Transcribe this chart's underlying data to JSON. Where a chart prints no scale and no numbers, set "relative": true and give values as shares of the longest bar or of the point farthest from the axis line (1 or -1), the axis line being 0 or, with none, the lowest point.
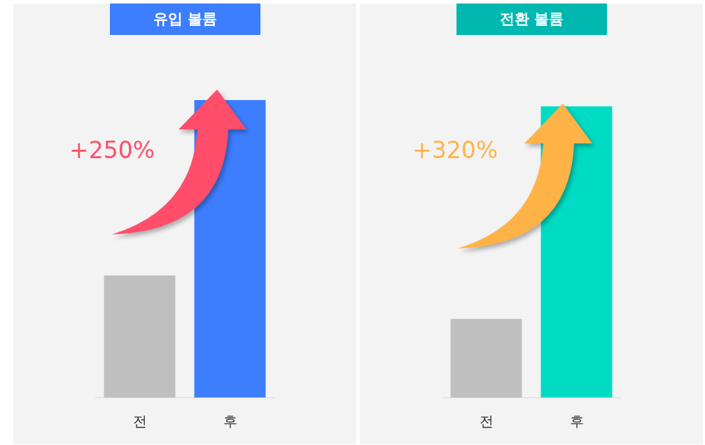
{
  "chart_data": [
    {
      "type": "bar",
      "title": "유입 볼륨",
      "categories": [
        "전",
        "후"
      ],
      "values": [
        0.41,
        1
      ],
      "colors": [
        "#bfbfbf",
        "#3d7eff"
      ],
      "relative": true,
      "annotations": [
        "+250%"
      ]
    },
    {
      "type": "bar",
      "title": "전환 볼륨",
      "categories": [
        "전",
        "후"
      ],
      "values": [
        0.27,
        1
      ],
      "colors": [
        "#bfbfbf",
        "#00dcc4"
      ],
      "relative": true,
      "annotations": [
        "+320%"
      ]
    }
  ]
}
